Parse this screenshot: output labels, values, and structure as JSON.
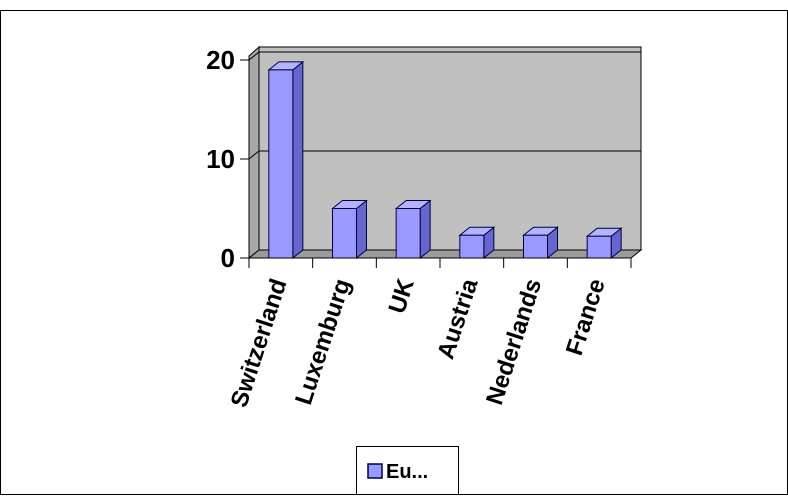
{
  "chart_data": {
    "type": "bar",
    "title": "",
    "xlabel": "",
    "ylabel": "",
    "categories": [
      "Switzerland",
      "Luxemburg",
      "UK",
      "Austria",
      "Nederlands",
      "France"
    ],
    "series": [
      {
        "name": "Eu...",
        "values": [
          19,
          5,
          5,
          2.3,
          2.3,
          2.2
        ]
      }
    ],
    "ylim": [
      0,
      20
    ],
    "yticks": [
      "0",
      "10",
      "20"
    ],
    "grid": true,
    "legend": "bottom",
    "colors": {
      "bar_front": "#9999ff",
      "bar_side": "#6666cc",
      "bar_top": "#b3b3ff",
      "bar_stroke": "#000040",
      "wall": "#c0c0c0",
      "floor": "#9a9a9a"
    }
  }
}
